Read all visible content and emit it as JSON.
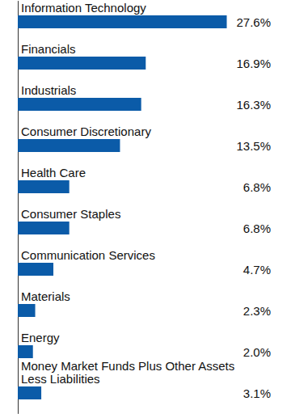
{
  "chart_data": {
    "type": "bar",
    "orientation": "horizontal",
    "categories": [
      "Information Technology",
      "Financials",
      "Industrials",
      "Consumer Discretionary",
      "Health Care",
      "Consumer Staples",
      "Communication Services",
      "Materials",
      "Energy",
      "Money Market Funds Plus Other Assets Less Liabilities"
    ],
    "values": [
      27.6,
      16.9,
      16.3,
      13.5,
      6.8,
      6.8,
      4.7,
      2.3,
      2.0,
      3.1
    ],
    "value_labels": [
      "27.6%",
      "16.9%",
      "16.3%",
      "13.5%",
      "6.8%",
      "6.8%",
      "4.7%",
      "2.3%",
      "2.0%",
      "3.1%"
    ],
    "color": "#0b5ba8",
    "xlim": [
      0,
      30
    ],
    "data_labels": true,
    "tick_labels": "y",
    "grid": false
  }
}
